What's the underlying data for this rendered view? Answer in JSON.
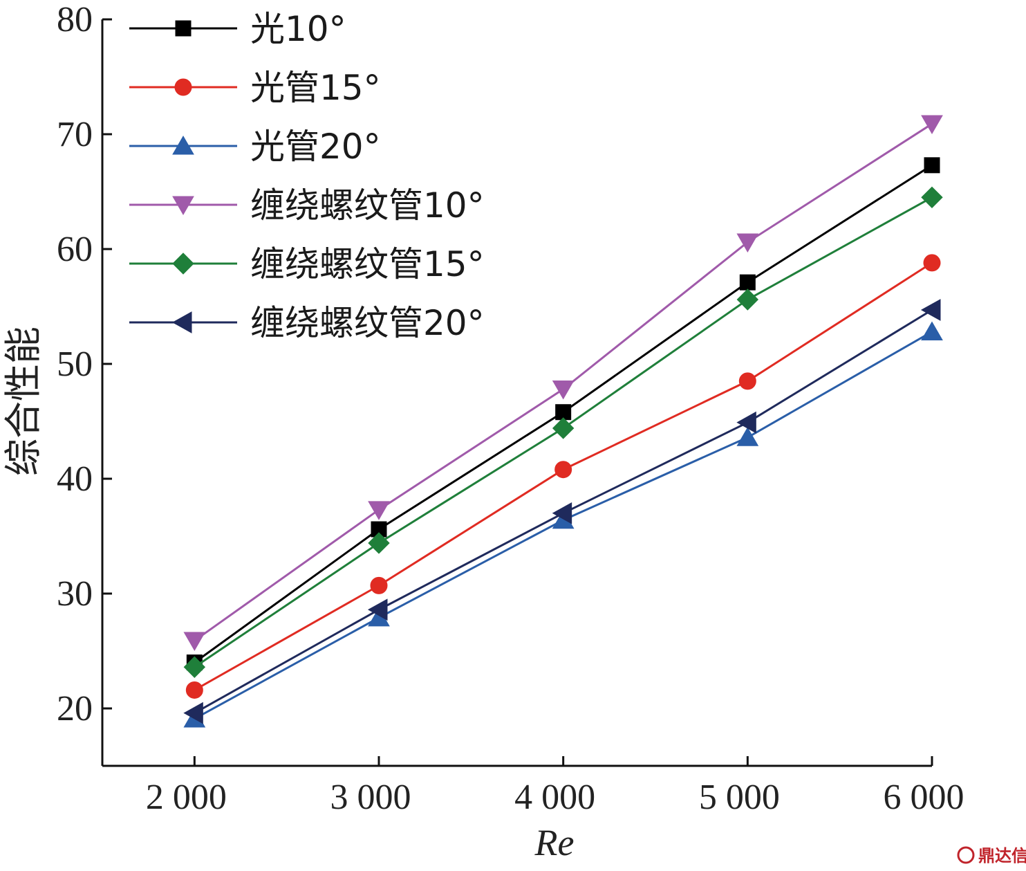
{
  "chart_data": {
    "type": "line",
    "xlabel": "Re",
    "ylabel": "综合性能",
    "x": [
      2000,
      3000,
      4000,
      5000,
      6000
    ],
    "x_tick_labels": [
      "2 000",
      "3 000",
      "4 000",
      "5 000",
      "6 000"
    ],
    "xlim": [
      1500,
      6000
    ],
    "ylim": [
      15,
      80
    ],
    "y_ticks": [
      20,
      30,
      40,
      50,
      60,
      70,
      80
    ],
    "y_tick_labels": [
      "20",
      "30",
      "40",
      "50",
      "60",
      "70",
      "80"
    ],
    "grid": false,
    "legend_position": "top-left",
    "series": [
      {
        "name": "光10°",
        "color": "#000000",
        "marker": "square",
        "values": [
          24.0,
          35.6,
          45.8,
          57.1,
          67.3
        ]
      },
      {
        "name": "光管15°",
        "color": "#e02b22",
        "marker": "circle",
        "values": [
          21.6,
          30.7,
          40.8,
          48.5,
          58.8
        ]
      },
      {
        "name": "光管20°",
        "color": "#2a5ea8",
        "marker": "triangle-up",
        "values": [
          19.1,
          27.9,
          36.4,
          43.6,
          52.8
        ]
      },
      {
        "name": "缠绕螺纹管10°",
        "color": "#a05aaa",
        "marker": "triangle-down",
        "values": [
          25.9,
          37.3,
          47.8,
          60.6,
          70.9
        ]
      },
      {
        "name": "缠绕螺纹管15°",
        "color": "#1f7f3a",
        "marker": "diamond",
        "values": [
          23.6,
          34.4,
          44.4,
          55.6,
          64.5
        ]
      },
      {
        "name": "缠绕螺纹管20°",
        "color": "#1f2a5c",
        "marker": "triangle-left",
        "values": [
          19.6,
          28.6,
          37.0,
          44.9,
          54.7
        ]
      }
    ]
  },
  "watermark": {
    "text": "鼎达信",
    "logo": "dingdaxin-logo-icon"
  }
}
